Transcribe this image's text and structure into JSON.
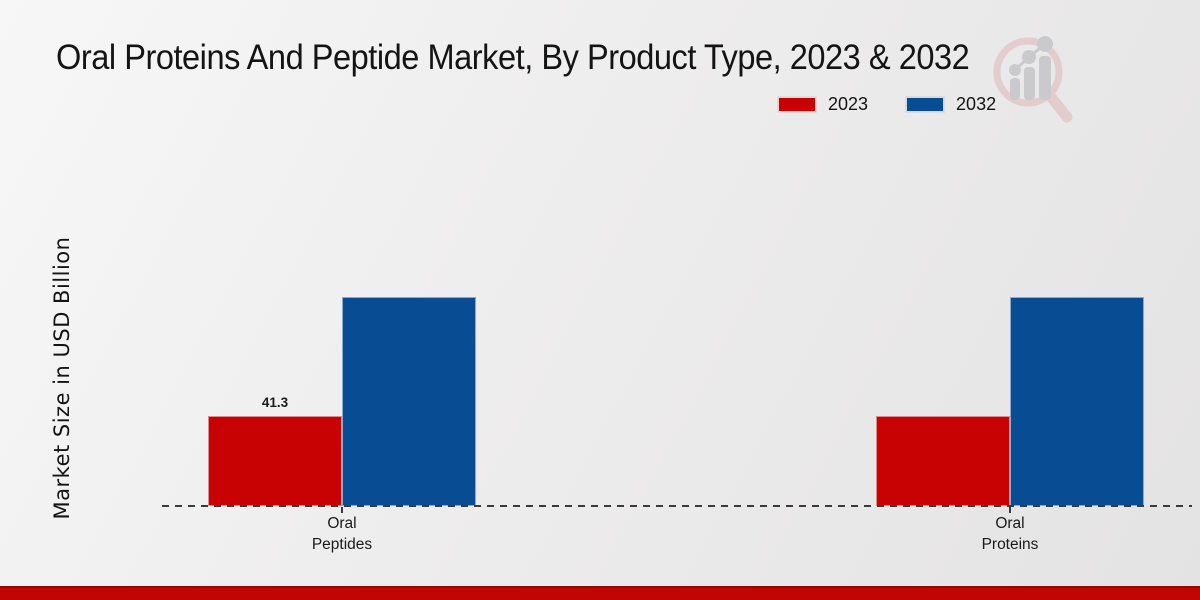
{
  "page": {
    "title": "Oral Proteins And Peptide Market, By Product Type, 2023 & 2032"
  },
  "y_axis_label": "Market Size in USD Billion",
  "legend": {
    "items": [
      {
        "label": "2023",
        "color": "#c80202"
      },
      {
        "label": "2032",
        "color": "#084c94"
      }
    ]
  },
  "colors": {
    "bar_2023": "#c80202",
    "bar_2032": "#084c94",
    "footer_band": "#c10505",
    "baseline": "#3a3a3a"
  },
  "watermark_icon": "magnifier-bar-chart-logo",
  "footer": {
    "band_color": "#c10505"
  },
  "chart_data": {
    "type": "bar",
    "title": "Oral Proteins And Peptide Market, By Product Type, 2023 & 2032",
    "xlabel": "",
    "ylabel": "Market Size in USD Billion",
    "categories": [
      "Oral Peptides",
      "Oral Proteins"
    ],
    "series": [
      {
        "name": "2023",
        "color": "#c80202",
        "values": [
          41.3,
          41.3
        ],
        "data_labels": [
          "41.3",
          ""
        ]
      },
      {
        "name": "2032",
        "color": "#084c94",
        "values": [
          95.9,
          95.9
        ],
        "data_labels": [
          "",
          ""
        ]
      }
    ],
    "ylim": [
      0,
      110
    ],
    "grid": false,
    "y_ticks_shown": false,
    "legend_position": "top-right",
    "baseline_style": "dashed"
  }
}
